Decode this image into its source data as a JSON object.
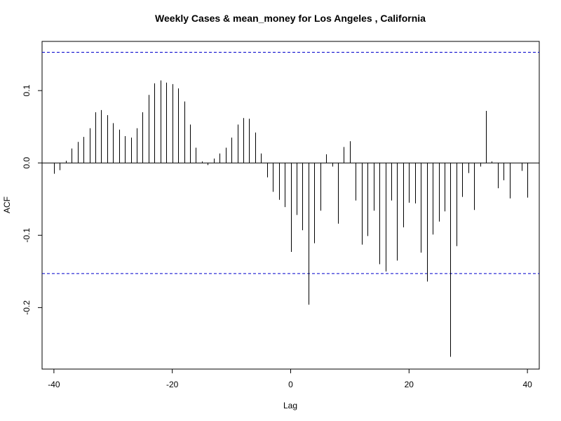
{
  "chart_data": {
    "type": "bar",
    "title": "Weekly Cases & mean_money for Los Angeles , California",
    "xlabel": "Lag",
    "ylabel": "ACF",
    "xlim": [
      -42,
      42
    ],
    "ylim": [
      -0.285,
      0.168
    ],
    "xticks": [
      -40,
      -20,
      0,
      20,
      40
    ],
    "yticks": [
      -0.2,
      -0.1,
      0.0,
      0.1
    ],
    "ytick_labels": [
      "-0.2",
      "-0.1",
      "0.0",
      "0.1"
    ],
    "confidence_bound": 0.153,
    "confidence_color": "#0000cc",
    "bar_color": "#000000",
    "grid": false,
    "x": [
      -40,
      -39,
      -38,
      -37,
      -36,
      -35,
      -34,
      -33,
      -32,
      -31,
      -30,
      -29,
      -28,
      -27,
      -26,
      -25,
      -24,
      -23,
      -22,
      -21,
      -20,
      -19,
      -18,
      -17,
      -16,
      -15,
      -14,
      -13,
      -12,
      -11,
      -10,
      -9,
      -8,
      -7,
      -6,
      -5,
      -4,
      -3,
      -2,
      -1,
      0,
      1,
      2,
      3,
      4,
      5,
      6,
      7,
      8,
      9,
      10,
      11,
      12,
      13,
      14,
      15,
      16,
      17,
      18,
      19,
      20,
      21,
      22,
      23,
      24,
      25,
      26,
      27,
      28,
      29,
      30,
      31,
      32,
      33,
      34,
      35,
      36,
      37,
      38,
      39,
      40
    ],
    "values": [
      -0.015,
      -0.01,
      0.003,
      0.02,
      0.029,
      0.036,
      0.048,
      0.07,
      0.073,
      0.066,
      0.055,
      0.046,
      0.037,
      0.035,
      0.048,
      0.07,
      0.094,
      0.11,
      0.114,
      0.111,
      0.109,
      0.103,
      0.085,
      0.053,
      0.021,
      0.002,
      -0.003,
      0.006,
      0.013,
      0.021,
      0.035,
      0.053,
      0.062,
      0.061,
      0.042,
      0.013,
      -0.02,
      -0.04,
      -0.051,
      -0.061,
      -0.123,
      -0.072,
      -0.093,
      -0.196,
      -0.111,
      -0.066,
      0.012,
      -0.005,
      -0.084,
      0.022,
      0.03,
      -0.052,
      -0.113,
      -0.101,
      -0.066,
      -0.14,
      -0.15,
      -0.052,
      -0.135,
      -0.089,
      -0.055,
      -0.056,
      -0.124,
      -0.164,
      -0.099,
      -0.081,
      -0.067,
      -0.268,
      -0.115,
      -0.047,
      -0.014,
      -0.065,
      -0.005,
      0.072,
      0.002,
      -0.035,
      -0.024,
      -0.049,
      0.0,
      -0.011,
      -0.048
    ]
  }
}
